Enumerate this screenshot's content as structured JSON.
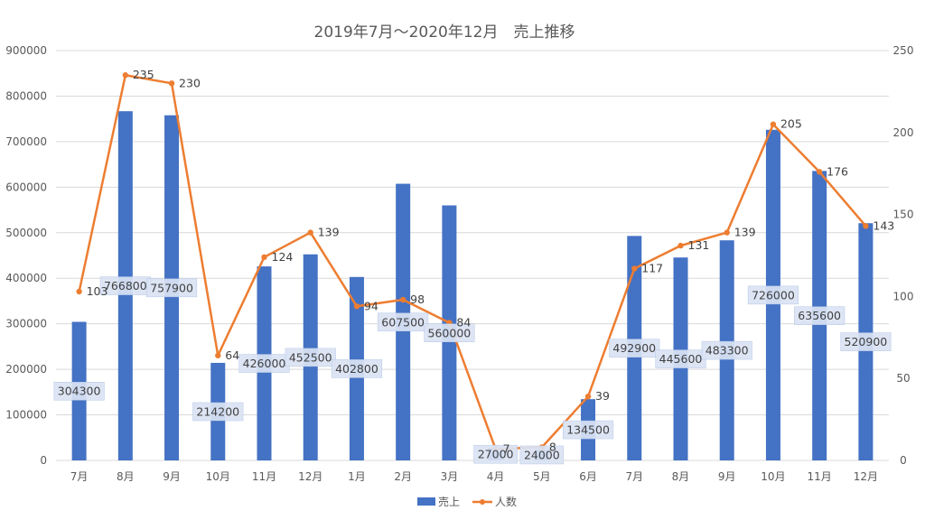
{
  "chart_data": {
    "type": "bar",
    "combo": "bar+line",
    "title": "2019年7月～2020年12月　売上推移",
    "categories": [
      "7月",
      "8月",
      "9月",
      "10月",
      "11月",
      "12月",
      "1月",
      "2月",
      "3月",
      "4月",
      "5月",
      "6月",
      "7月",
      "8月",
      "9月",
      "10月",
      "11月",
      "12月"
    ],
    "series": [
      {
        "name": "売上",
        "type": "bar",
        "axis": "left",
        "color": "#4472C4",
        "values": [
          304300,
          766800,
          757900,
          214200,
          426000,
          452500,
          402800,
          607500,
          560000,
          27000,
          24000,
          134500,
          492900,
          445600,
          483300,
          726000,
          635600,
          520900
        ],
        "labels": [
          "304300",
          "766800",
          "757900",
          "214200",
          "426000",
          "452500",
          "402800",
          "607500",
          "560000",
          "27000",
          "24000",
          "134500",
          "492900",
          "445600",
          "483300",
          "726000",
          "635600",
          "520900"
        ]
      },
      {
        "name": "人数",
        "type": "line",
        "axis": "right",
        "color": "#ED7D31",
        "values": [
          103,
          235,
          230,
          64,
          124,
          139,
          94,
          98,
          84,
          7,
          8,
          39,
          117,
          131,
          139,
          205,
          176,
          143
        ],
        "labels": [
          "103",
          "235",
          "230",
          "64",
          "124",
          "139",
          "94",
          "98",
          "84",
          "7",
          "8",
          "39",
          "117",
          "131",
          "139",
          "205",
          "176",
          "143"
        ]
      }
    ],
    "y_left": {
      "min": 0,
      "max": 900000,
      "ticks": [
        "0",
        "100000",
        "200000",
        "300000",
        "400000",
        "500000",
        "600000",
        "700000",
        "800000",
        "900000"
      ]
    },
    "y_right": {
      "min": 0,
      "max": 250,
      "ticks": [
        "0",
        "50",
        "100",
        "150",
        "200",
        "250"
      ]
    },
    "grid": true,
    "legend_position": "bottom"
  }
}
